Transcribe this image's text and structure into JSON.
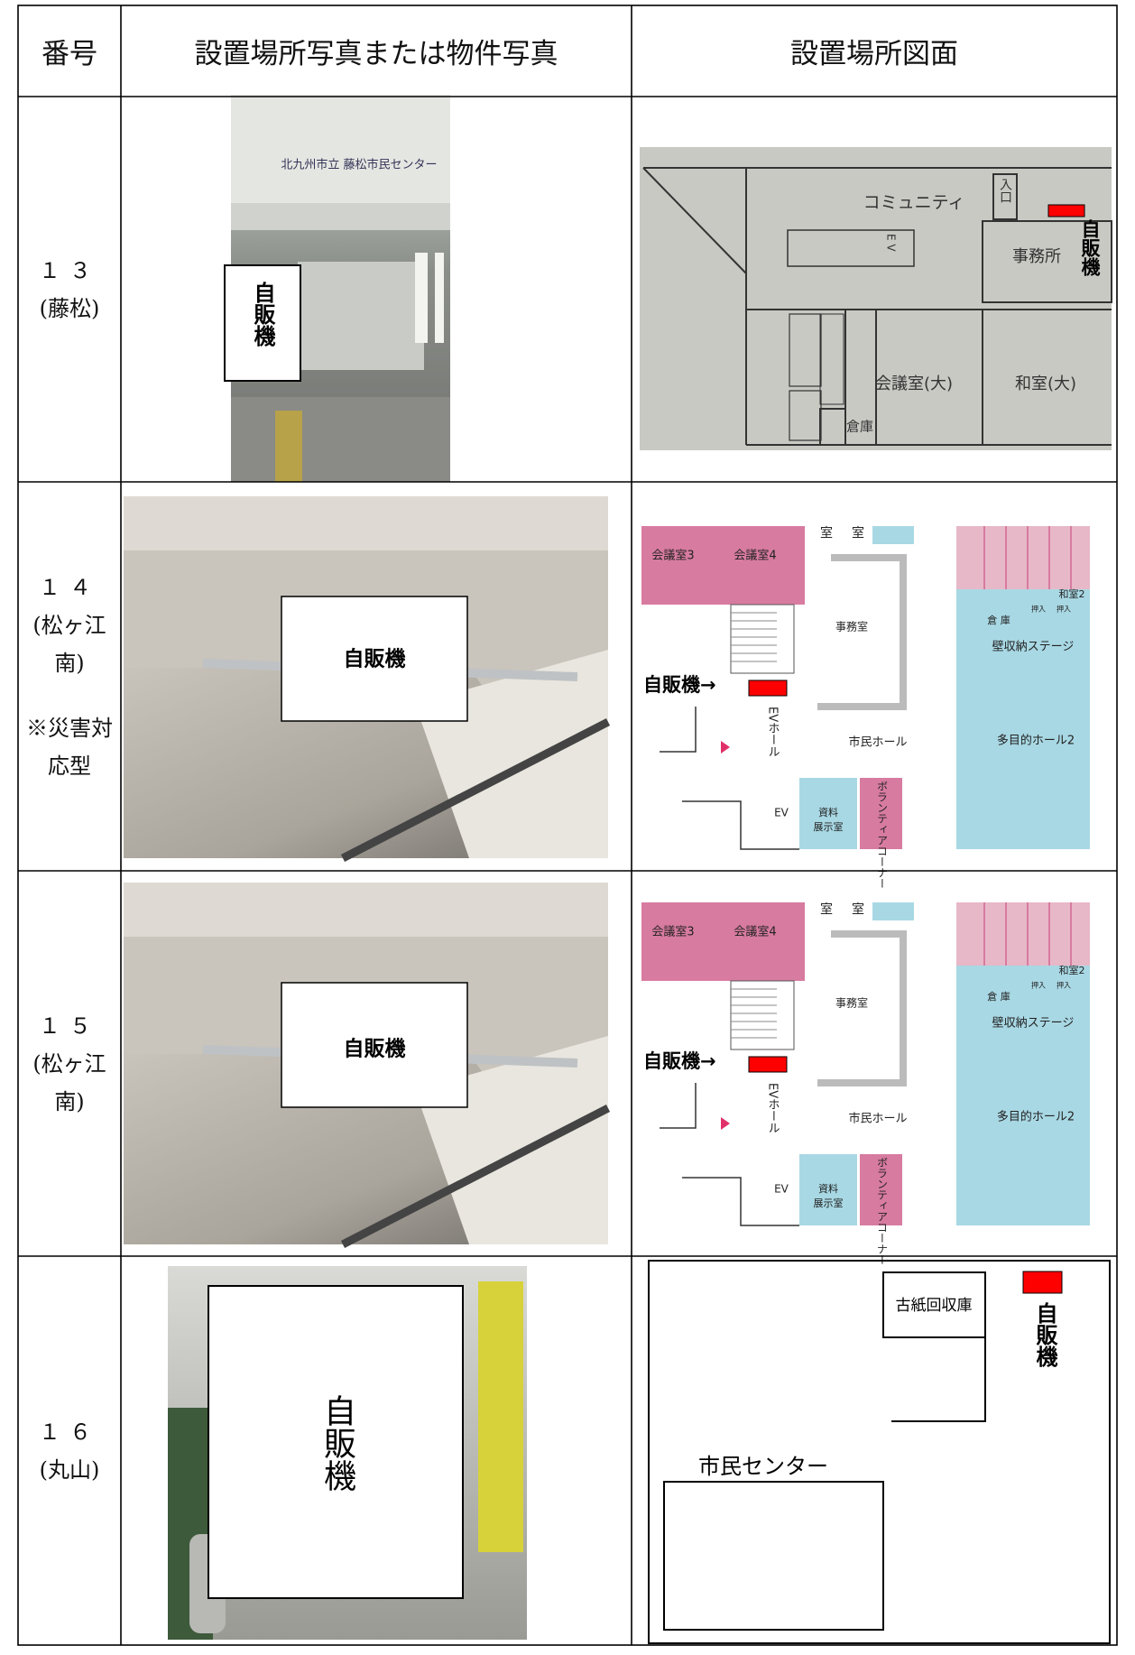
{
  "header": {
    "number": "番号",
    "photo": "設置場所写真または物件写真",
    "map": "設置場所図面"
  },
  "rows": [
    {
      "number": "１３",
      "place": "(藤松)",
      "photo": {
        "sign": "北九州市立 藤松市民センター",
        "label": "自販機"
      },
      "map": {
        "rooms": [
          "コミュニティ",
          "入口",
          "事務所",
          "E V",
          "会議室(大)",
          "和室(大)",
          "倉庫"
        ],
        "label": "自販機"
      }
    },
    {
      "number": "１４",
      "place": "(松ヶ江南)",
      "note": "※災害対応型",
      "photo": {
        "label": "自販機"
      },
      "map": {
        "rooms": [
          "会議室3",
          "会議室4",
          "室",
          "室",
          "和室2",
          "倉 庫",
          "押入",
          "押入",
          "壁収納ステージ",
          "事務室",
          "市民ホール",
          "多目的ホール2",
          "EVホール",
          "EV",
          "資料",
          "展示室",
          "ボランティアコーナー"
        ],
        "label": "自販機→"
      }
    },
    {
      "number": "１５",
      "place": "(松ヶ江南)",
      "photo": {
        "label": "自販機"
      },
      "map": {
        "rooms": [
          "会議室3",
          "会議室4",
          "室",
          "室",
          "和室2",
          "倉 庫",
          "押入",
          "押入",
          "壁収納ステージ",
          "事務室",
          "市民ホール",
          "多目的ホール2",
          "EVホール",
          "EV",
          "資料",
          "展示室",
          "ボランティアコーナー"
        ],
        "label": "自販機→"
      }
    },
    {
      "number": "１６",
      "place": "(丸山)",
      "photo": {
        "label": "自販機"
      },
      "map": {
        "rooms": [
          "古紙回収庫",
          "市民センター"
        ],
        "label": "自販機"
      }
    }
  ]
}
